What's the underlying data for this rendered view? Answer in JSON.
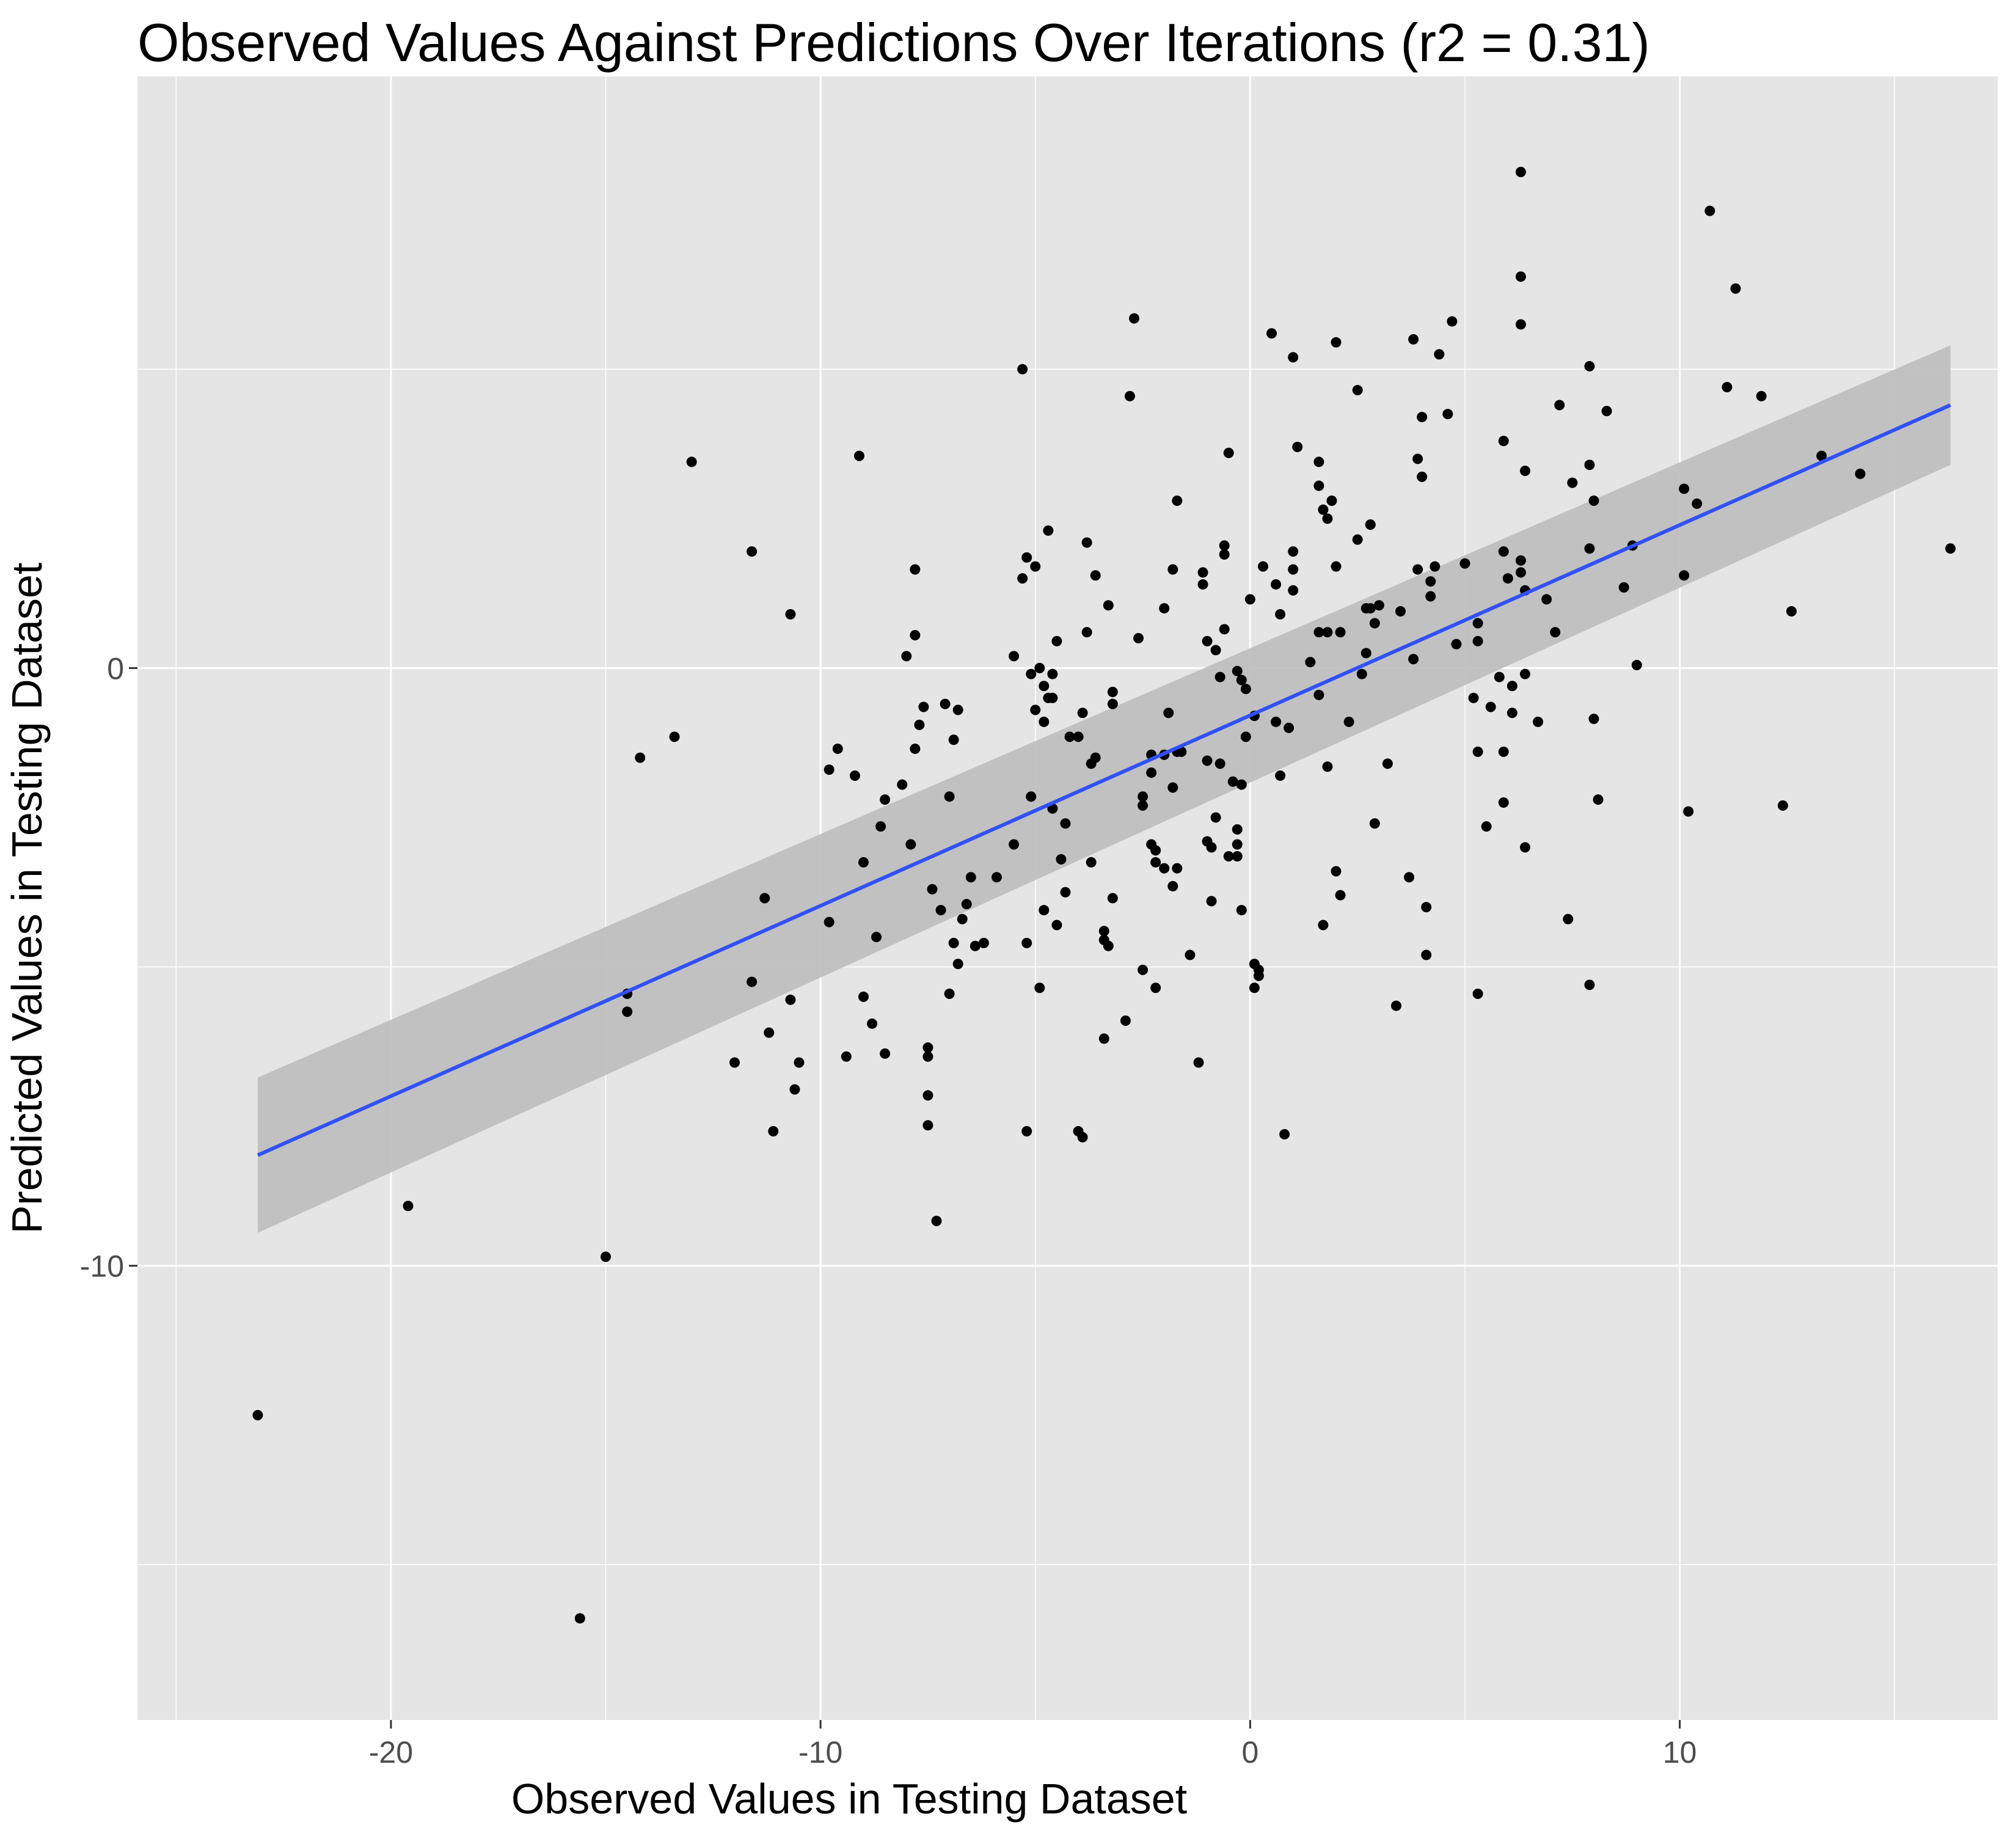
{
  "chart_data": {
    "type": "scatter",
    "title": "Observed Values Against Predictions Over Iterations (r2 = 0.31)",
    "xlabel": "Observed Values in Testing Dataset",
    "ylabel": "Predicted Values in Testing Dataset",
    "xlim": [
      -25.9,
      17.4
    ],
    "ylim": [
      -17.6,
      9.9
    ],
    "x_ticks": [
      -20,
      -10,
      0,
      10
    ],
    "x_tick_labels": [
      "-20",
      "-10",
      "0",
      "10"
    ],
    "y_ticks": [
      -10,
      0
    ],
    "y_tick_labels": [
      "-10",
      "0"
    ],
    "grid": true,
    "legend": "none",
    "colors": {
      "panel": "#e5e5e5",
      "grid": "#ffffff",
      "points": "#000000",
      "fit_line": "#3050f8",
      "ribbon": "#bdbdbd"
    },
    "regression": {
      "x": [
        -23.1,
        16.3
      ],
      "y": [
        -8.15,
        4.4
      ],
      "band_x": [
        -23.1,
        16.3
      ],
      "band_upper": [
        -6.85,
        5.4
      ],
      "band_lower": [
        -9.45,
        3.4
      ]
    },
    "points": [
      [
        -23.1,
        -12.5
      ],
      [
        -15.6,
        -15.9
      ],
      [
        -15.0,
        -9.85
      ],
      [
        -19.6,
        -9.0
      ],
      [
        -14.5,
        -5.45
      ],
      [
        -14.5,
        -5.75
      ],
      [
        -14.2,
        -1.5
      ],
      [
        -13.4,
        -1.15
      ],
      [
        -13.0,
        3.45
      ],
      [
        -12.0,
        -6.6
      ],
      [
        -11.6,
        1.95
      ],
      [
        -11.6,
        -5.25
      ],
      [
        -11.3,
        -3.85
      ],
      [
        -11.2,
        -6.1
      ],
      [
        -11.1,
        -7.75
      ],
      [
        -10.7,
        0.9
      ],
      [
        -10.7,
        -5.55
      ],
      [
        -10.6,
        -7.05
      ],
      [
        -10.5,
        -6.6
      ],
      [
        -9.8,
        -1.7
      ],
      [
        -9.8,
        -4.25
      ],
      [
        -9.6,
        -1.35
      ],
      [
        -9.4,
        -6.5
      ],
      [
        -9.2,
        -1.8
      ],
      [
        -9.1,
        3.55
      ],
      [
        -9.0,
        -5.5
      ],
      [
        -9.0,
        -3.25
      ],
      [
        -8.8,
        -5.95
      ],
      [
        -8.7,
        -4.5
      ],
      [
        -8.6,
        -2.65
      ],
      [
        -8.5,
        -6.45
      ],
      [
        -8.5,
        -2.2
      ],
      [
        -8.1,
        -1.95
      ],
      [
        -8.0,
        0.2
      ],
      [
        -7.9,
        -2.95
      ],
      [
        -7.8,
        -1.35
      ],
      [
        -7.8,
        0.55
      ],
      [
        -7.8,
        1.65
      ],
      [
        -7.7,
        -0.95
      ],
      [
        -7.6,
        -0.65
      ],
      [
        -7.5,
        -6.35
      ],
      [
        -7.5,
        -6.5
      ],
      [
        -7.5,
        -7.15
      ],
      [
        -7.5,
        -7.65
      ],
      [
        -7.4,
        -3.7
      ],
      [
        -7.3,
        -9.25
      ],
      [
        -7.2,
        -4.05
      ],
      [
        -7.1,
        -0.6
      ],
      [
        -7.0,
        -5.45
      ],
      [
        -7.0,
        -2.15
      ],
      [
        -6.9,
        -1.2
      ],
      [
        -6.9,
        -4.6
      ],
      [
        -6.8,
        -0.7
      ],
      [
        -6.8,
        -4.95
      ],
      [
        -6.7,
        -4.2
      ],
      [
        -6.6,
        -3.95
      ],
      [
        -6.5,
        -3.5
      ],
      [
        -6.4,
        -4.65
      ],
      [
        -6.2,
        -4.6
      ],
      [
        -5.9,
        -3.5
      ],
      [
        -5.5,
        -2.95
      ],
      [
        -5.5,
        0.2
      ],
      [
        -5.3,
        1.5
      ],
      [
        -5.2,
        1.85
      ],
      [
        -5.3,
        5.0
      ],
      [
        -5.2,
        -7.75
      ],
      [
        -5.2,
        -4.6
      ],
      [
        -5.1,
        -0.1
      ],
      [
        -5.1,
        -2.15
      ],
      [
        -5.0,
        -0.7
      ],
      [
        -5.0,
        1.7
      ],
      [
        -4.9,
        -5.35
      ],
      [
        -4.9,
        0.0
      ],
      [
        -4.8,
        -4.05
      ],
      [
        -4.8,
        -0.3
      ],
      [
        -4.8,
        -0.9
      ],
      [
        -4.7,
        -0.5
      ],
      [
        -4.7,
        2.3
      ],
      [
        -4.6,
        -0.5
      ],
      [
        -4.6,
        -2.35
      ],
      [
        -4.6,
        -0.1
      ],
      [
        -4.5,
        0.45
      ],
      [
        -4.5,
        -4.3
      ],
      [
        -4.4,
        -3.2
      ],
      [
        -4.3,
        -3.75
      ],
      [
        -4.3,
        -2.6
      ],
      [
        -4.2,
        -1.15
      ],
      [
        -4.0,
        -7.75
      ],
      [
        -4.0,
        -1.15
      ],
      [
        -3.9,
        -0.75
      ],
      [
        -3.9,
        -7.85
      ],
      [
        -3.8,
        2.1
      ],
      [
        -3.8,
        0.6
      ],
      [
        -3.7,
        -1.6
      ],
      [
        -3.7,
        -3.25
      ],
      [
        -3.6,
        -1.5
      ],
      [
        -3.6,
        1.55
      ],
      [
        -3.4,
        -4.4
      ],
      [
        -3.4,
        -4.55
      ],
      [
        -3.4,
        -6.2
      ],
      [
        -3.3,
        1.05
      ],
      [
        -3.3,
        -4.65
      ],
      [
        -3.2,
        -0.6
      ],
      [
        -3.2,
        -0.4
      ],
      [
        -3.2,
        -3.85
      ],
      [
        -2.9,
        -5.9
      ],
      [
        -2.8,
        4.55
      ],
      [
        -2.7,
        5.85
      ],
      [
        -2.6,
        0.5
      ],
      [
        -2.5,
        -2.15
      ],
      [
        -2.5,
        -2.3
      ],
      [
        -2.5,
        -5.05
      ],
      [
        -2.3,
        -1.75
      ],
      [
        -2.3,
        -2.95
      ],
      [
        -2.3,
        -1.45
      ],
      [
        -2.2,
        -3.05
      ],
      [
        -2.2,
        -3.25
      ],
      [
        -2.2,
        -5.35
      ],
      [
        -2.0,
        -3.35
      ],
      [
        -2.0,
        -1.45
      ],
      [
        -2.0,
        1.0
      ],
      [
        -1.9,
        -0.75
      ],
      [
        -1.8,
        1.65
      ],
      [
        -1.8,
        -3.65
      ],
      [
        -1.7,
        2.8
      ],
      [
        -1.7,
        -1.4
      ],
      [
        -1.6,
        -1.4
      ],
      [
        -1.7,
        -3.35
      ],
      [
        -1.8,
        -2.0
      ],
      [
        -1.4,
        -4.8
      ],
      [
        -1.2,
        -6.6
      ],
      [
        -1.1,
        1.6
      ],
      [
        -1.1,
        1.4
      ],
      [
        -1.0,
        -1.55
      ],
      [
        -1.0,
        -2.9
      ],
      [
        -1.0,
        0.45
      ],
      [
        -0.9,
        -3.0
      ],
      [
        -0.9,
        -3.9
      ],
      [
        -0.8,
        -2.5
      ],
      [
        -0.8,
        0.3
      ],
      [
        -0.7,
        -0.15
      ],
      [
        -0.7,
        -1.6
      ],
      [
        -0.6,
        0.65
      ],
      [
        -0.6,
        2.05
      ],
      [
        -0.6,
        1.9
      ],
      [
        -0.5,
        3.6
      ],
      [
        -0.5,
        -3.15
      ],
      [
        -0.4,
        -1.9
      ],
      [
        -0.3,
        -3.15
      ],
      [
        -0.3,
        -0.05
      ],
      [
        -0.3,
        -2.7
      ],
      [
        -0.3,
        -2.95
      ],
      [
        -0.2,
        -1.95
      ],
      [
        -0.2,
        -4.05
      ],
      [
        -0.2,
        -0.2
      ],
      [
        -0.1,
        -1.15
      ],
      [
        -0.1,
        -0.35
      ],
      [
        0.1,
        -0.8
      ],
      [
        0.0,
        1.15
      ],
      [
        0.1,
        -4.95
      ],
      [
        0.1,
        -5.35
      ],
      [
        0.2,
        -5.05
      ],
      [
        0.2,
        -5.15
      ],
      [
        0.3,
        1.7
      ],
      [
        0.5,
        5.6
      ],
      [
        0.6,
        -0.9
      ],
      [
        0.6,
        1.4
      ],
      [
        0.7,
        -1.8
      ],
      [
        0.7,
        0.9
      ],
      [
        0.9,
        -1.0
      ],
      [
        0.8,
        -7.8
      ],
      [
        1.0,
        1.3
      ],
      [
        1.0,
        1.65
      ],
      [
        1.0,
        1.95
      ],
      [
        1.0,
        5.2
      ],
      [
        1.1,
        3.7
      ],
      [
        1.4,
        0.1
      ],
      [
        1.6,
        -0.45
      ],
      [
        1.6,
        3.05
      ],
      [
        1.6,
        0.6
      ],
      [
        1.6,
        3.45
      ],
      [
        1.7,
        2.65
      ],
      [
        1.7,
        -4.3
      ],
      [
        1.8,
        0.6
      ],
      [
        1.8,
        2.5
      ],
      [
        1.8,
        -1.65
      ],
      [
        1.9,
        2.8
      ],
      [
        2.0,
        -3.4
      ],
      [
        2.0,
        1.7
      ],
      [
        2.0,
        5.45
      ],
      [
        2.1,
        -3.8
      ],
      [
        2.1,
        0.6
      ],
      [
        2.3,
        -0.9
      ],
      [
        2.5,
        4.65
      ],
      [
        2.5,
        2.15
      ],
      [
        2.6,
        -0.1
      ],
      [
        2.7,
        0.25
      ],
      [
        2.7,
        1.0
      ],
      [
        2.8,
        1.0
      ],
      [
        2.8,
        2.4
      ],
      [
        2.8,
        2.4
      ],
      [
        2.9,
        0.75
      ],
      [
        2.9,
        -2.6
      ],
      [
        3.0,
        1.05
      ],
      [
        3.2,
        -1.6
      ],
      [
        3.4,
        -5.65
      ],
      [
        3.5,
        0.95
      ],
      [
        3.7,
        -3.5
      ],
      [
        3.8,
        0.15
      ],
      [
        3.8,
        5.5
      ],
      [
        3.9,
        3.5
      ],
      [
        3.9,
        1.65
      ],
      [
        4.0,
        3.2
      ],
      [
        4.0,
        4.2
      ],
      [
        4.1,
        -4.0
      ],
      [
        4.1,
        -4.8
      ],
      [
        4.2,
        1.2
      ],
      [
        4.2,
        1.45
      ],
      [
        4.3,
        1.7
      ],
      [
        4.4,
        5.25
      ],
      [
        4.6,
        4.25
      ],
      [
        4.7,
        5.8
      ],
      [
        4.8,
        0.4
      ],
      [
        5.0,
        1.75
      ],
      [
        5.2,
        -0.5
      ],
      [
        5.3,
        -5.45
      ],
      [
        5.3,
        0.75
      ],
      [
        5.3,
        -1.4
      ],
      [
        5.3,
        0.45
      ],
      [
        5.5,
        -2.65
      ],
      [
        5.6,
        -0.65
      ],
      [
        5.8,
        -0.15
      ],
      [
        5.9,
        -1.4
      ],
      [
        5.9,
        3.8
      ],
      [
        5.9,
        1.95
      ],
      [
        5.9,
        -2.25
      ],
      [
        6.0,
        1.5
      ],
      [
        6.1,
        -0.75
      ],
      [
        6.1,
        -0.3
      ],
      [
        6.3,
        1.8
      ],
      [
        6.3,
        1.6
      ],
      [
        6.3,
        5.75
      ],
      [
        6.3,
        8.3
      ],
      [
        6.3,
        6.55
      ],
      [
        6.4,
        3.3
      ],
      [
        6.4,
        1.3
      ],
      [
        6.4,
        -3.0
      ],
      [
        6.4,
        -0.1
      ],
      [
        6.7,
        -0.9
      ],
      [
        6.9,
        1.15
      ],
      [
        7.1,
        0.6
      ],
      [
        7.2,
        4.4
      ],
      [
        7.4,
        -4.2
      ],
      [
        7.5,
        3.1
      ],
      [
        7.9,
        5.05
      ],
      [
        7.9,
        2.0
      ],
      [
        7.9,
        -5.3
      ],
      [
        7.9,
        3.4
      ],
      [
        8.0,
        2.8
      ],
      [
        8.0,
        -0.85
      ],
      [
        8.1,
        -2.2
      ],
      [
        8.3,
        4.3
      ],
      [
        8.7,
        1.35
      ],
      [
        8.9,
        2.05
      ],
      [
        9.0,
        0.05
      ],
      [
        10.1,
        3.0
      ],
      [
        10.1,
        1.55
      ],
      [
        10.2,
        -2.4
      ],
      [
        10.4,
        2.75
      ],
      [
        10.7,
        7.65
      ],
      [
        11.1,
        4.7
      ],
      [
        11.3,
        6.35
      ],
      [
        11.9,
        4.55
      ],
      [
        12.4,
        -2.3
      ],
      [
        12.6,
        0.95
      ],
      [
        13.3,
        3.55
      ],
      [
        14.2,
        3.25
      ],
      [
        16.3,
        2.0
      ]
    ]
  }
}
